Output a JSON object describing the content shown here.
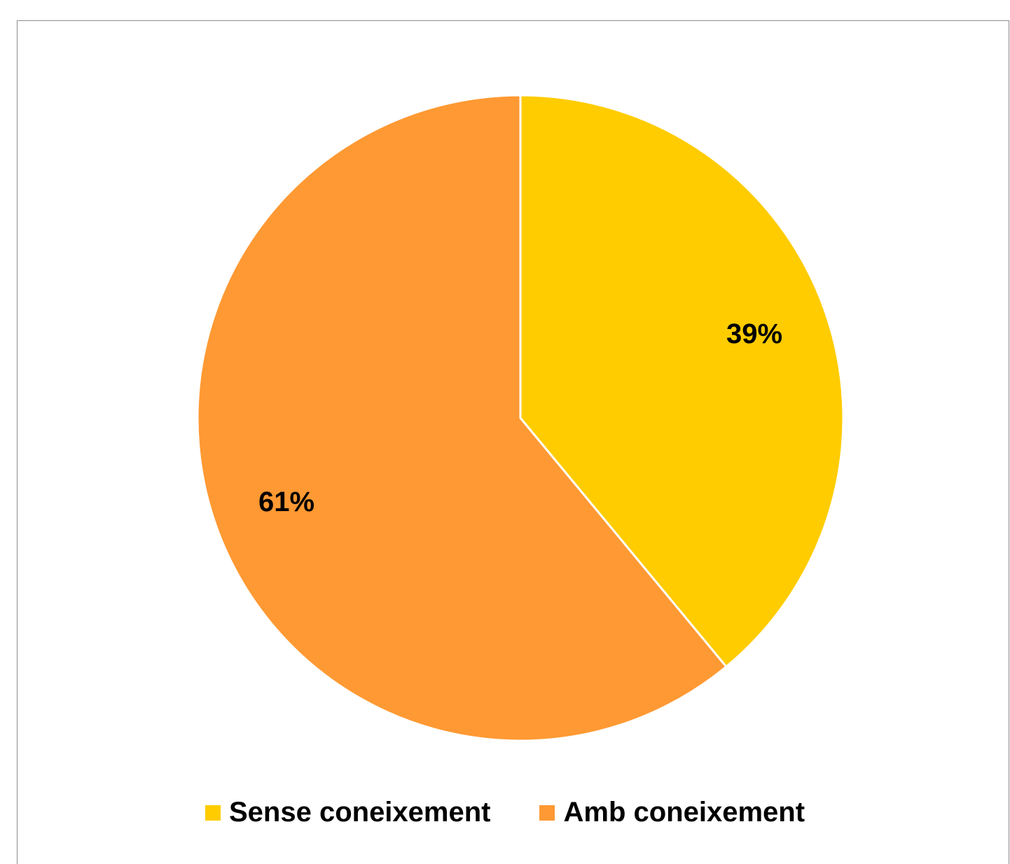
{
  "chart_data": {
    "type": "pie",
    "categories": [
      "Sense coneixement",
      "Amb coneixement"
    ],
    "values": [
      39,
      61
    ],
    "data_labels": [
      "39%",
      "61%"
    ],
    "colors": [
      "#FFCC00",
      "#FF9933"
    ],
    "start_angle_deg": 0,
    "direction": "clockwise",
    "legend_position": "bottom",
    "title": ""
  }
}
